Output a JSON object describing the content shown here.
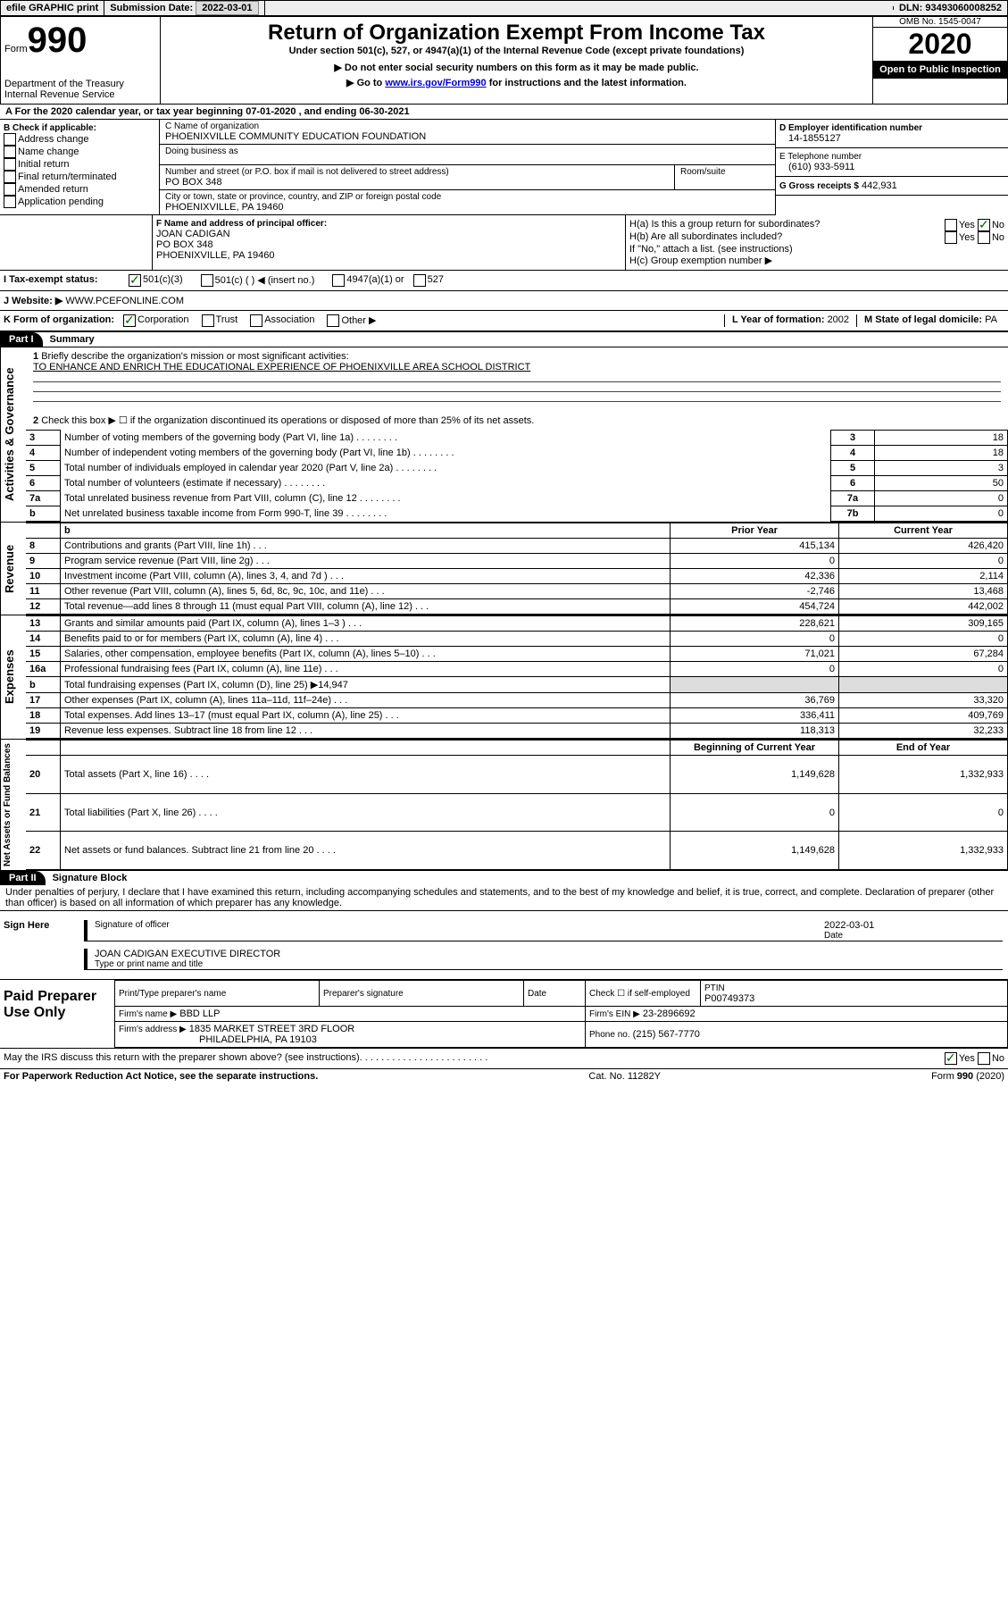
{
  "top": {
    "efile": "efile GRAPHIC print",
    "sub_label": "Submission Date:",
    "sub_date": "2022-03-01",
    "dln_label": "DLN:",
    "dln": "93493060008252"
  },
  "header": {
    "form_word": "Form",
    "form_num": "990",
    "dept": "Department of the Treasury\nInternal Revenue Service",
    "title": "Return of Organization Exempt From Income Tax",
    "subtitle": "Under section 501(c), 527, or 4947(a)(1) of the Internal Revenue Code (except private foundations)",
    "note1": "▶ Do not enter social security numbers on this form as it may be made public.",
    "note2_pre": "▶ Go to ",
    "note2_link": "www.irs.gov/Form990",
    "note2_post": " for instructions and the latest information.",
    "omb": "OMB No. 1545-0047",
    "year": "2020",
    "inspect": "Open to Public Inspection"
  },
  "periodA": "For the 2020 calendar year, or tax year beginning 07-01-2020    , and ending 06-30-2021",
  "boxB": {
    "label": "B Check if applicable:",
    "items": [
      "Address change",
      "Name change",
      "Initial return",
      "Final return/terminated",
      "Amended return",
      "Application pending"
    ]
  },
  "boxC": {
    "name_label": "C Name of organization",
    "name": "PHOENIXVILLE COMMUNITY EDUCATION FOUNDATION",
    "dba_label": "Doing business as",
    "street_label": "Number and street (or P.O. box if mail is not delivered to street address)",
    "room_label": "Room/suite",
    "street": "PO BOX 348",
    "city_label": "City or town, state or province, country, and ZIP or foreign postal code",
    "city": "PHOENIXVILLE, PA  19460"
  },
  "boxD": {
    "label": "D Employer identification number",
    "val": "14-1855127"
  },
  "boxE": {
    "label": "E Telephone number",
    "val": "(610) 933-5911"
  },
  "boxG": {
    "label": "G Gross receipts $",
    "val": "442,931"
  },
  "boxF": {
    "label": "F Name and address of principal officer:",
    "name": "JOAN CADIGAN",
    "street": "PO BOX 348",
    "city": "PHOENIXVILLE, PA  19460"
  },
  "boxH": {
    "a": "H(a)  Is this a group return for subordinates?",
    "b": "H(b)  Are all subordinates included?",
    "note": "If \"No,\" attach a list. (see instructions)",
    "c": "H(c)  Group exemption number ▶"
  },
  "boxI": {
    "label": "I  Tax-exempt status:",
    "opt1": "501(c)(3)",
    "opt2pre": "501(c) (  ) ◀ (insert no.)",
    "opt3": "4947(a)(1) or",
    "opt4": "527"
  },
  "boxJ": {
    "label": "J   Website: ▶",
    "val": "WWW.PCEFONLINE.COM"
  },
  "boxK": {
    "label": "K Form of organization:",
    "opts": [
      "Corporation",
      "Trust",
      "Association",
      "Other ▶"
    ]
  },
  "boxL": {
    "label": "L Year of formation:",
    "val": "2002"
  },
  "boxM": {
    "label": "M State of legal domicile:",
    "val": "PA"
  },
  "part1": {
    "tab": "Part I",
    "title": "Summary",
    "side_ag": "Activities & Governance",
    "side_rev": "Revenue",
    "side_exp": "Expenses",
    "side_na": "Net Assets or Fund Balances",
    "q1": "Briefly describe the organization's mission or most significant activities:",
    "mission": "TO ENHANCE AND ENRICH THE EDUCATIONAL EXPERIENCE OF PHOENIXVILLE AREA SCHOOL DISTRICT",
    "q2": "Check this box ▶ ☐  if the organization discontinued its operations or disposed of more than 25% of its net assets.",
    "rows_ag": [
      {
        "n": "3",
        "t": "Number of voting members of the governing body (Part VI, line 1a)",
        "col": "3",
        "v": "18"
      },
      {
        "n": "4",
        "t": "Number of independent voting members of the governing body (Part VI, line 1b)",
        "col": "4",
        "v": "18"
      },
      {
        "n": "5",
        "t": "Total number of individuals employed in calendar year 2020 (Part V, line 2a)",
        "col": "5",
        "v": "3"
      },
      {
        "n": "6",
        "t": "Total number of volunteers (estimate if necessary)",
        "col": "6",
        "v": "50"
      },
      {
        "n": "7a",
        "t": "Total unrelated business revenue from Part VIII, column (C), line 12",
        "col": "7a",
        "v": "0"
      },
      {
        "n": "b",
        "t": "Net unrelated business taxable income from Form 990-T, line 39",
        "col": "7b",
        "v": "0"
      }
    ],
    "col_py": "Prior Year",
    "col_cy": "Current Year",
    "rows_rev": [
      {
        "n": "8",
        "t": "Contributions and grants (Part VIII, line 1h)",
        "py": "415,134",
        "cy": "426,420"
      },
      {
        "n": "9",
        "t": "Program service revenue (Part VIII, line 2g)",
        "py": "0",
        "cy": "0"
      },
      {
        "n": "10",
        "t": "Investment income (Part VIII, column (A), lines 3, 4, and 7d )",
        "py": "42,336",
        "cy": "2,114"
      },
      {
        "n": "11",
        "t": "Other revenue (Part VIII, column (A), lines 5, 6d, 8c, 9c, 10c, and 11e)",
        "py": "-2,746",
        "cy": "13,468"
      },
      {
        "n": "12",
        "t": "Total revenue—add lines 8 through 11 (must equal Part VIII, column (A), line 12)",
        "py": "454,724",
        "cy": "442,002"
      }
    ],
    "rows_exp": [
      {
        "n": "13",
        "t": "Grants and similar amounts paid (Part IX, column (A), lines 1–3 )",
        "py": "228,621",
        "cy": "309,165"
      },
      {
        "n": "14",
        "t": "Benefits paid to or for members (Part IX, column (A), line 4)",
        "py": "0",
        "cy": "0"
      },
      {
        "n": "15",
        "t": "Salaries, other compensation, employee benefits (Part IX, column (A), lines 5–10)",
        "py": "71,021",
        "cy": "67,284"
      },
      {
        "n": "16a",
        "t": "Professional fundraising fees (Part IX, column (A), line 11e)",
        "py": "0",
        "cy": "0"
      },
      {
        "n": "b",
        "t": "Total fundraising expenses (Part IX, column (D), line 25) ▶14,947",
        "py": "",
        "cy": "",
        "shade": true
      },
      {
        "n": "17",
        "t": "Other expenses (Part IX, column (A), lines 11a–11d, 11f–24e)",
        "py": "36,769",
        "cy": "33,320"
      },
      {
        "n": "18",
        "t": "Total expenses. Add lines 13–17 (must equal Part IX, column (A), line 25)",
        "py": "336,411",
        "cy": "409,769"
      },
      {
        "n": "19",
        "t": "Revenue less expenses. Subtract line 18 from line 12",
        "py": "118,313",
        "cy": "32,233"
      }
    ],
    "col_boy": "Beginning of Current Year",
    "col_eoy": "End of Year",
    "rows_na": [
      {
        "n": "20",
        "t": "Total assets (Part X, line 16)",
        "py": "1,149,628",
        "cy": "1,332,933"
      },
      {
        "n": "21",
        "t": "Total liabilities (Part X, line 26)",
        "py": "0",
        "cy": "0"
      },
      {
        "n": "22",
        "t": "Net assets or fund balances. Subtract line 21 from line 20",
        "py": "1,149,628",
        "cy": "1,332,933"
      }
    ]
  },
  "part2": {
    "tab": "Part II",
    "title": "Signature Block",
    "decl": "Under penalties of perjury, I declare that I have examined this return, including accompanying schedules and statements, and to the best of my knowledge and belief, it is true, correct, and complete. Declaration of preparer (other than officer) is based on all information of which preparer has any knowledge.",
    "sign_here": "Sign Here",
    "sig_officer": "Signature of officer",
    "sig_date": "Date",
    "sig_date_val": "2022-03-01",
    "sig_name": "JOAN CADIGAN  EXECUTIVE DIRECTOR",
    "sig_type": "Type or print name and title",
    "paid": "Paid Preparer Use Only",
    "pp_name": "Print/Type preparer's name",
    "pp_sig": "Preparer's signature",
    "pp_date": "Date",
    "pp_check": "Check ☐ if self-employed",
    "pp_ptin_l": "PTIN",
    "pp_ptin": "P00749373",
    "firm_name_l": "Firm's name   ▶",
    "firm_name": "BBD LLP",
    "firm_ein_l": "Firm's EIN ▶",
    "firm_ein": "23-2896692",
    "firm_addr_l": "Firm's address ▶",
    "firm_addr1": "1835 MARKET STREET 3RD FLOOR",
    "firm_addr2": "PHILADELPHIA, PA  19103",
    "phone_l": "Phone no.",
    "phone": "(215) 567-7770",
    "discuss": "May the IRS discuss this return with the preparer shown above? (see instructions)"
  },
  "footer": {
    "left": "For Paperwork Reduction Act Notice, see the separate instructions.",
    "mid": "Cat. No. 11282Y",
    "right": "Form 990 (2020)"
  },
  "yes": "Yes",
  "no": "No"
}
